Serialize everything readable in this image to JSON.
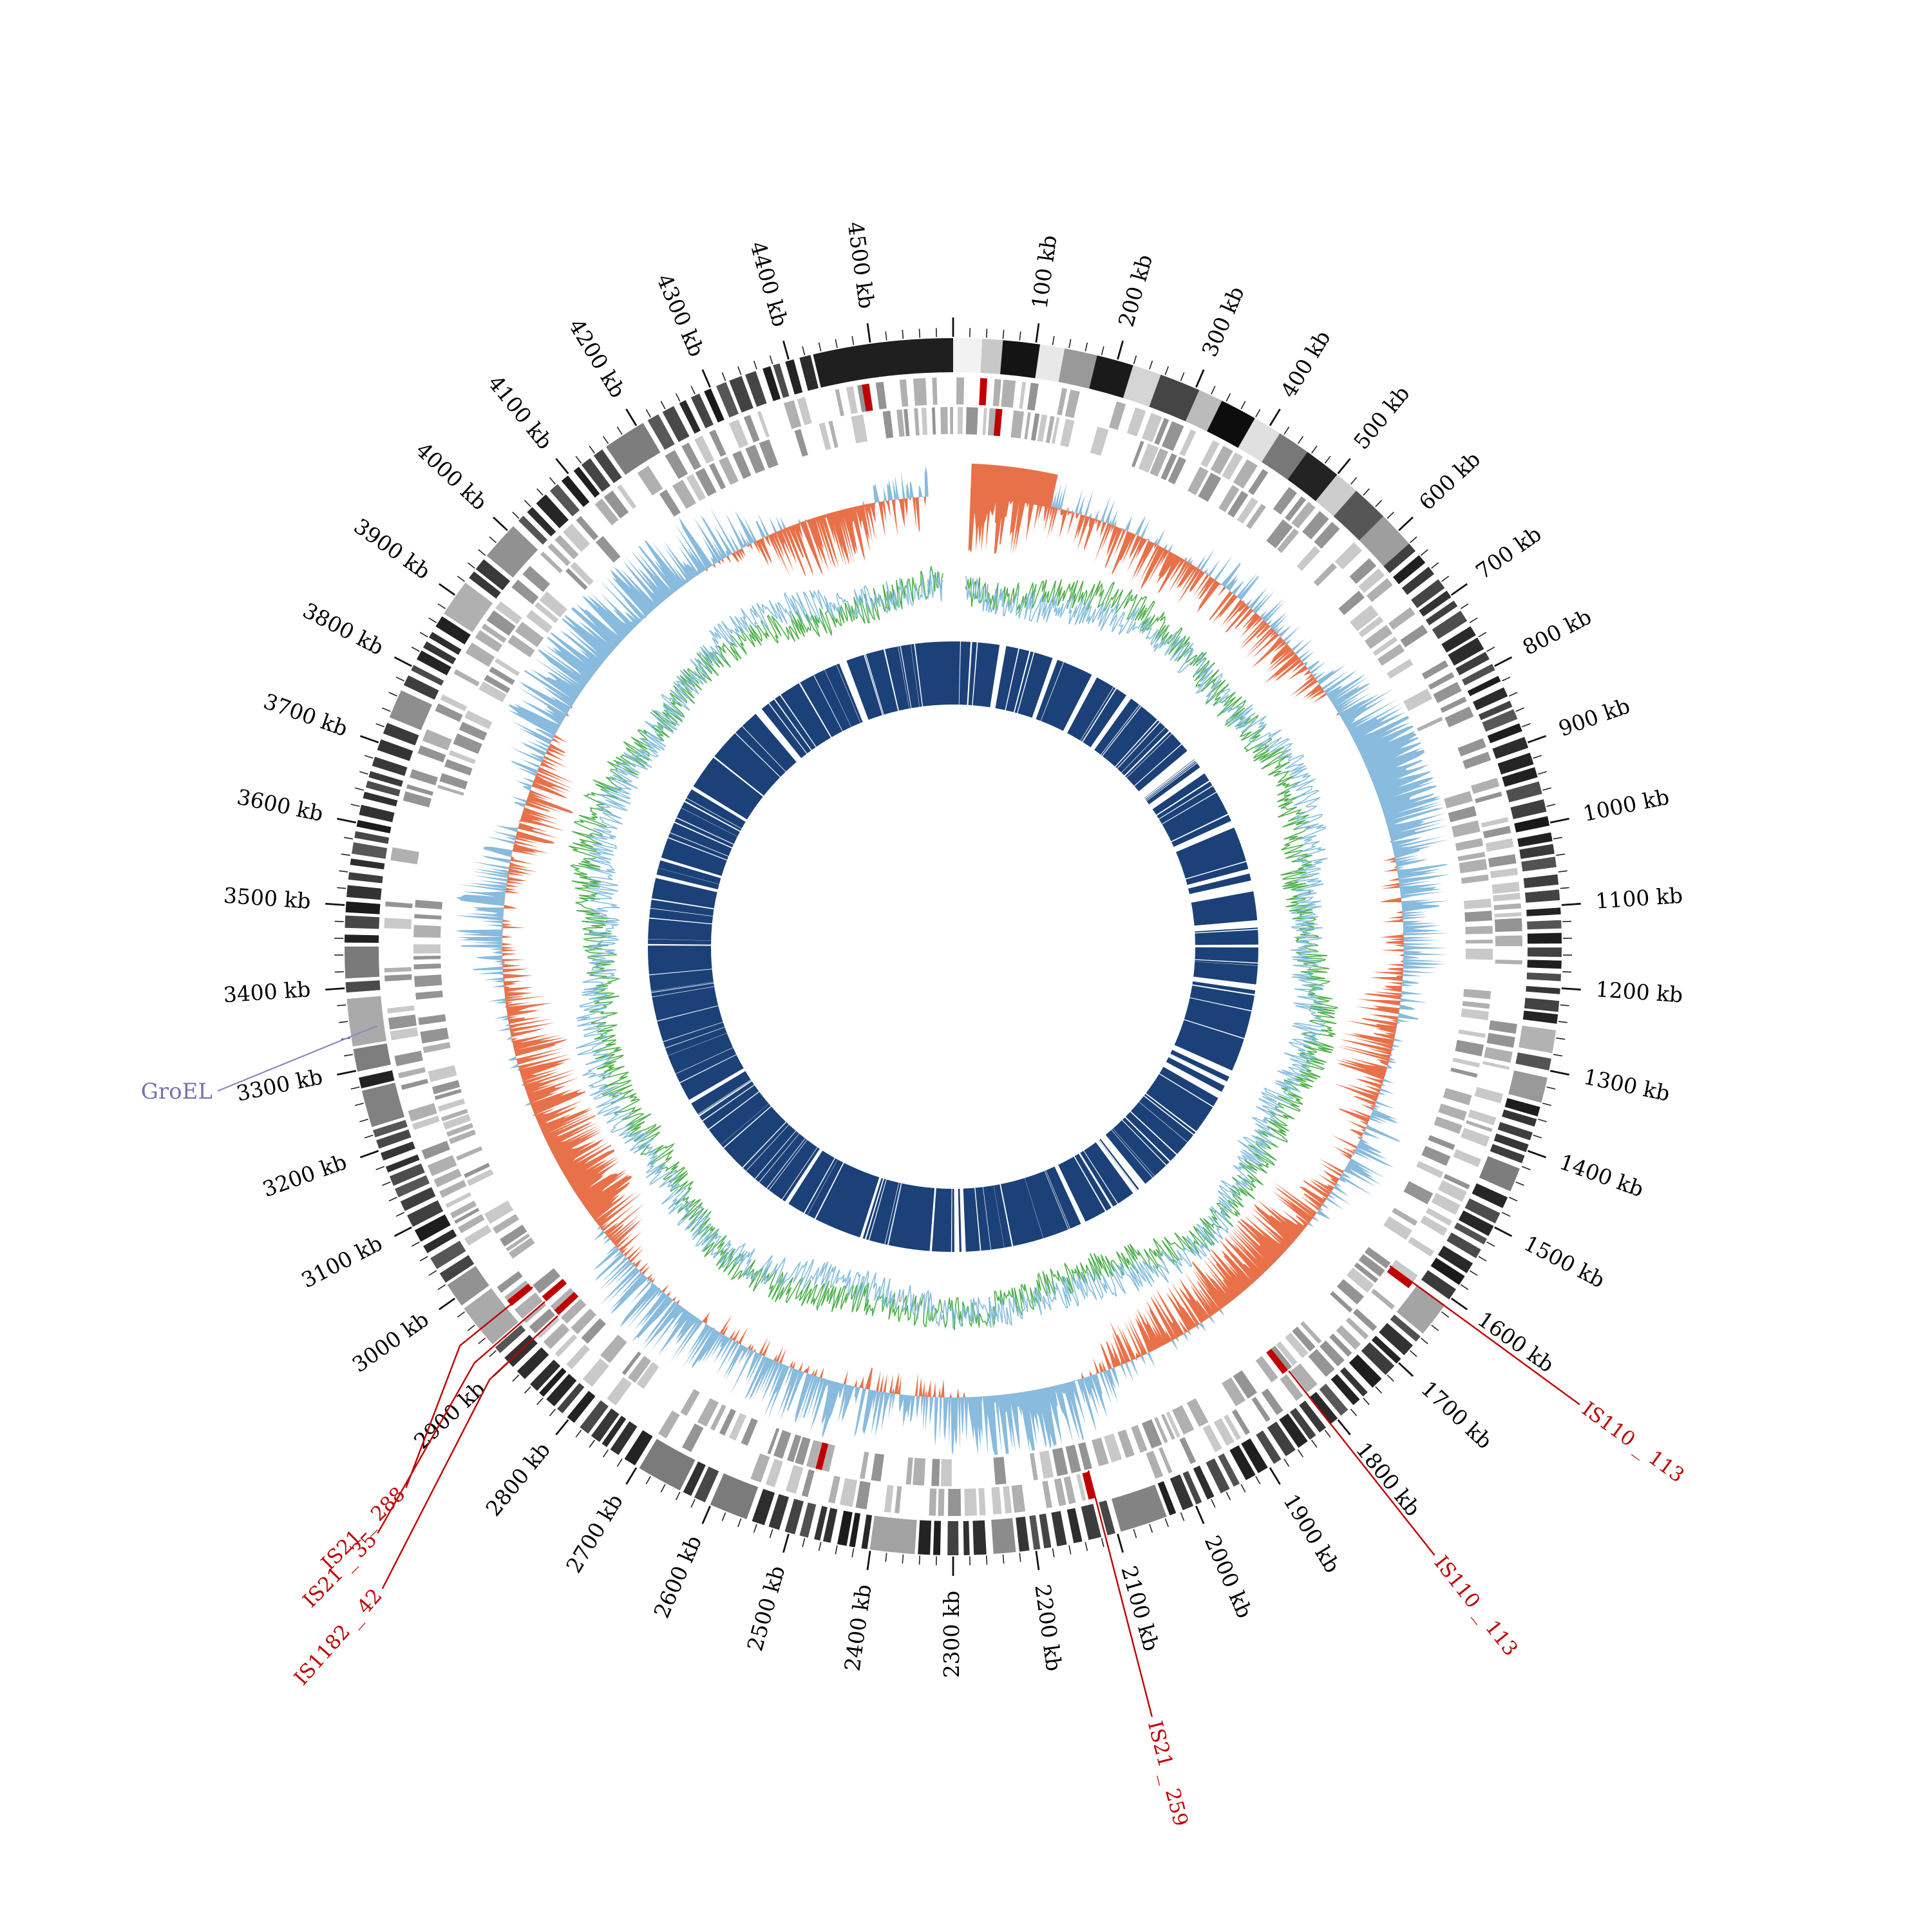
{
  "chart_data": {
    "type": "circos",
    "title": "",
    "description": "Circular bacterial genome map with grayscale ideogram ring, gray gene-block rings, diverging GC-skew spike ring (blue outward / orange inward), noisy GC-content line ring (green and light blue), inner solid navy coverage ring with white gaps, and labelled insertion-sequence annotations.",
    "genome_length_kb": 4600,
    "tick_interval_kb": 100,
    "tick_unit": "kb",
    "tick_labels": [
      "100 kb",
      "200 kb",
      "300 kb",
      "400 kb",
      "500 kb",
      "600 kb",
      "700 kb",
      "800 kb",
      "900 kb",
      "1000 kb",
      "1100 kb",
      "1200 kb",
      "1300 kb",
      "1400 kb",
      "1500 kb",
      "1600 kb",
      "1700 kb",
      "1800 kb",
      "1900 kb",
      "2000 kb",
      "2100 kb",
      "2200 kb",
      "2300 kb",
      "2400 kb",
      "2500 kb",
      "2600 kb",
      "2700 kb",
      "2800 kb",
      "2900 kb",
      "3000 kb",
      "3100 kb",
      "3200 kb",
      "3300 kb",
      "3400 kb",
      "3500 kb",
      "3600 kb",
      "3700 kb",
      "3800 kb",
      "3900 kb",
      "4000 kb",
      "4100 kb",
      "4200 kb",
      "4300 kb",
      "4400 kb",
      "4500 kb"
    ],
    "rings": [
      {
        "id": "ideogram",
        "type": "karyotype-bands",
        "r_outer": 945,
        "r_inner": 892,
        "lead_segments": [
          [
            0,
            35,
            "#f2f2f2"
          ],
          [
            35,
            25,
            "#c8c8c8"
          ],
          [
            60,
            45,
            "#141414"
          ],
          [
            105,
            30,
            "#e8e8e8"
          ],
          [
            135,
            40,
            "#999999"
          ],
          [
            175,
            45,
            "#1a1a1a"
          ],
          [
            220,
            35,
            "#d5d5d5"
          ],
          [
            255,
            50,
            "#454545"
          ],
          [
            305,
            30,
            "#bbbbbb"
          ],
          [
            335,
            45,
            "#0d0d0d"
          ],
          [
            380,
            35,
            "#e0e0e0"
          ],
          [
            415,
            40,
            "#787878"
          ],
          [
            455,
            45,
            "#232323"
          ],
          [
            500,
            30,
            "#cccccc"
          ],
          [
            530,
            45,
            "#565656"
          ],
          [
            575,
            45,
            "#9e9e9e"
          ]
        ],
        "tail_segment": [
          4430,
          170,
          "#1f1f1f"
        ],
        "stripe_zone": [
          620,
          4430
        ],
        "seed": 11
      },
      {
        "id": "genes-forward",
        "type": "gene-blocks",
        "r_outer": 884,
        "r_inner": 842,
        "palette": [
          "#c9c9c9",
          "#b0b0b0",
          "#949494"
        ],
        "highlight_color": "#c00000",
        "highlight_blocks_kb": [
          35,
          1612,
          2115,
          2950,
          4482
        ],
        "seed": 21
      },
      {
        "id": "genes-reverse",
        "type": "gene-blocks",
        "r_outer": 838,
        "r_inner": 796,
        "palette": [
          "#c9c9c9",
          "#b0b0b0",
          "#949494"
        ],
        "highlight_color": "#c00000",
        "highlight_blocks_kb": [
          58,
          1810,
          2480,
          2900,
          2925
        ],
        "seed": 22
      },
      {
        "id": "gc-skew",
        "type": "diverging-spike-area",
        "baseline_r": 700,
        "amp_out": 92,
        "amp_in": 86,
        "color_positive": "#88bbdd",
        "color_negative": "#e8714a",
        "start_kb": 28,
        "end_kb": 4560,
        "flat_lead": {
          "from_kb": 28,
          "to_kb": 160,
          "level": 0.55
        },
        "seed": 31
      },
      {
        "id": "gc-content",
        "type": "noisy-lines",
        "baseline_r": 570,
        "amplitude": 50,
        "series": [
          {
            "name": "gc-green",
            "color": "#4daf4a",
            "seed": 41
          },
          {
            "name": "gc-blue",
            "color": "#85bede",
            "seed": 42
          }
        ],
        "start_kb": 25,
        "end_kb": 4580
      },
      {
        "id": "coverage",
        "type": "solid-ring-with-gaps",
        "r_outer": 474,
        "r_inner": 376,
        "color": "#1b4178",
        "gap_color": "#ffffff",
        "seed": 51,
        "n_random_gaps": 150,
        "named_gaps_kb": [
          [
            112,
            16
          ],
          [
            640,
            26
          ],
          [
            690,
            18
          ],
          [
            1145,
            7
          ],
          [
            1488,
            9
          ],
          [
            2285,
            12
          ],
          [
            2520,
            7
          ],
          [
            3055,
            10
          ],
          [
            3660,
            7
          ],
          [
            4085,
            9
          ]
        ]
      }
    ],
    "annotations": [
      {
        "label": "GroEL",
        "pos_kb": 3350,
        "color": "#7472ae",
        "line_color": "#8a88c0",
        "style": "horizontal",
        "text_x": 330,
        "text_y": 1706
      },
      {
        "label": "IS110 _ 113",
        "pos_kb": 1612,
        "color": "#c00000",
        "text_r": 1205,
        "text_kb": 1612
      },
      {
        "label": "IS110 _ 113",
        "pos_kb": 1810,
        "color": "#c00000",
        "text_r": 1205,
        "text_kb": 1810
      },
      {
        "label": "IS21 _ 259",
        "pos_kb": 2115,
        "color": "#c00000",
        "text_r": 1235,
        "text_kb": 2115
      },
      {
        "label": "IS21 _ 288",
        "pos_kb": 2952,
        "color": "#c00000",
        "text_r": 1195,
        "text_kb": 2879
      },
      {
        "label": "IS21 _ 35",
        "pos_kb": 2926,
        "color": "#c00000",
        "text_r": 1276,
        "text_kb": 2868
      },
      {
        "label": "IS1182 _ 42",
        "pos_kb": 2900,
        "color": "#c00000",
        "text_r": 1334,
        "text_kb": 2832
      }
    ]
  }
}
